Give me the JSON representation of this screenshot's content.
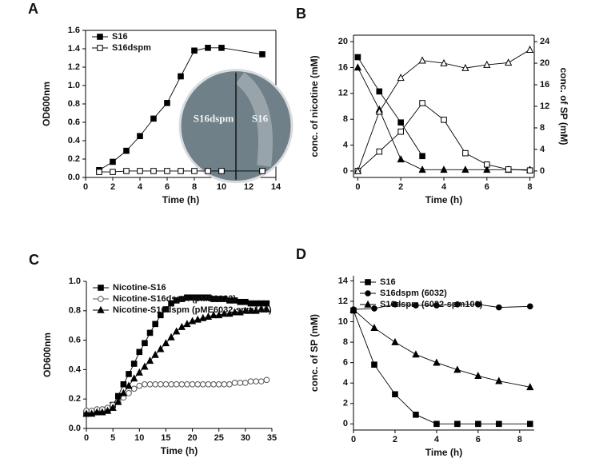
{
  "chart_data": [
    {
      "type": "line",
      "panel": "A",
      "xlabel": "Time (h)",
      "ylabel": "OD600nm",
      "frame": true,
      "legend": "upper left",
      "xlim": [
        0,
        14
      ],
      "xticks": [
        0,
        2,
        4,
        6,
        8,
        10,
        12,
        14
      ],
      "ylim": [
        0,
        1.6
      ],
      "yticks": [
        {
          "value": 0,
          "label": "0.0"
        },
        0.2,
        0.4,
        0.6,
        0.8,
        {
          "value": 1,
          "label": "1.0"
        },
        1.2,
        1.4,
        1.6
      ],
      "x": [
        1,
        2,
        3,
        4,
        5,
        6,
        7,
        8,
        9,
        10,
        13
      ],
      "series": [
        {
          "name": "S16",
          "color": "#000000",
          "marker": "square",
          "filled": true,
          "values": [
            0.08,
            0.17,
            0.29,
            0.45,
            0.64,
            0.81,
            1.1,
            1.38,
            1.41,
            1.41,
            1.34
          ]
        },
        {
          "name": "S16dspm",
          "color": "#000000",
          "marker": "square",
          "filled": false,
          "values": [
            0.06,
            0.06,
            0.07,
            0.07,
            0.07,
            0.07,
            0.07,
            0.07,
            0.07,
            0.07,
            0.07
          ]
        }
      ],
      "inset_labels": [
        "S16dspm",
        "S16"
      ]
    },
    {
      "type": "line",
      "panel": "B",
      "xlabel": "Time (h)",
      "ylabel": "conc. of nicotine (mM)",
      "y2label": "conc. of SP (mM)",
      "frame": true,
      "xlim": [
        -0.2,
        8.2
      ],
      "xticks": [
        0,
        2,
        4,
        6,
        8
      ],
      "ylim": [
        -1,
        21
      ],
      "yticks": [
        0,
        4,
        8,
        12,
        16,
        20
      ],
      "y2lim": [
        -1.2,
        25.2
      ],
      "y2ticks": [
        0,
        4,
        8,
        12,
        16,
        20,
        24
      ],
      "x": [
        0,
        1,
        2,
        3,
        4,
        5,
        6,
        7,
        8
      ],
      "series": [
        {
          "color": "#000000",
          "marker": "square",
          "filled": true,
          "values": [
            17.6,
            12.3,
            7.5,
            2.3,
            null,
            null,
            null,
            null,
            null
          ]
        },
        {
          "color": "#000000",
          "marker": "triangle",
          "filled": true,
          "values": [
            16.0,
            9.5,
            1.8,
            0.2,
            0.2,
            0.2,
            0.2,
            0.2,
            0.2
          ]
        },
        {
          "color": "#000000",
          "marker": "square",
          "filled": false,
          "axis": "y2",
          "values": [
            0,
            3.6,
            7.3,
            12.6,
            9.5,
            3.3,
            1.2,
            0.3,
            0.1
          ]
        },
        {
          "color": "#000000",
          "marker": "triangle",
          "filled": false,
          "axis": "y2",
          "values": [
            0,
            11.0,
            17.3,
            20.5,
            20.0,
            19.1,
            19.7,
            20.1,
            22.5
          ]
        }
      ]
    },
    {
      "type": "line",
      "panel": "C",
      "xlabel": "Time (h)",
      "ylabel": "OD600nm",
      "frame": false,
      "legend": "upper left",
      "xlim": [
        0,
        35
      ],
      "xticks": [
        0,
        5,
        10,
        15,
        20,
        25,
        30,
        35
      ],
      "ylim": [
        0,
        1.0
      ],
      "yticks": [
        {
          "value": 0,
          "label": "0.0"
        },
        0.2,
        0.4,
        0.6,
        0.8,
        {
          "value": 1,
          "label": "1.0"
        }
      ],
      "x": [
        0,
        1,
        2,
        3,
        4,
        5,
        6,
        7,
        8,
        9,
        10,
        11,
        12,
        13,
        14,
        15,
        16,
        17,
        18,
        19,
        20,
        21,
        22,
        23,
        24,
        25,
        26,
        27,
        28,
        29,
        30,
        31,
        32,
        33,
        34
      ],
      "series": [
        {
          "name": "Nicotine-S16",
          "color": "#000000",
          "marker": "square",
          "filled": true,
          "values": [
            0.1,
            0.11,
            0.11,
            0.12,
            0.13,
            0.16,
            0.22,
            0.3,
            0.37,
            0.44,
            0.52,
            0.58,
            0.65,
            0.71,
            0.77,
            0.81,
            0.85,
            0.87,
            0.88,
            0.89,
            0.89,
            0.89,
            0.89,
            0.89,
            0.88,
            0.88,
            0.88,
            0.87,
            0.87,
            0.86,
            0.86,
            0.85,
            0.85,
            0.85,
            0.85
          ]
        },
        {
          "name": "Nicotine-S16dspm (pME6032)",
          "color": "#555555",
          "marker": "circle",
          "filled": false,
          "values": [
            0.12,
            0.12,
            0.13,
            0.13,
            0.14,
            0.16,
            0.18,
            0.21,
            0.24,
            0.27,
            0.29,
            0.3,
            0.3,
            0.3,
            0.3,
            0.3,
            0.3,
            0.3,
            0.3,
            0.3,
            0.3,
            0.3,
            0.3,
            0.3,
            0.3,
            0.3,
            0.3,
            0.3,
            0.31,
            0.31,
            0.31,
            0.32,
            0.32,
            0.32,
            0.33
          ]
        },
        {
          "name": "Nicotine-S16dspm (pME6032-spm100)",
          "color": "#000000",
          "marker": "triangle",
          "filled": true,
          "values": [
            0.1,
            0.1,
            0.11,
            0.11,
            0.12,
            0.14,
            0.18,
            0.24,
            0.29,
            0.34,
            0.38,
            0.42,
            0.46,
            0.5,
            0.54,
            0.58,
            0.62,
            0.66,
            0.69,
            0.71,
            0.73,
            0.74,
            0.75,
            0.76,
            0.77,
            0.77,
            0.78,
            0.78,
            0.79,
            0.79,
            0.8,
            0.8,
            0.8,
            0.81,
            0.81
          ]
        }
      ]
    },
    {
      "type": "line",
      "panel": "D",
      "xlabel": "Time (h)",
      "ylabel": "conc. of SP (mM)",
      "frame": false,
      "legend": "upper left",
      "xlim": [
        0,
        8.7
      ],
      "xticks": [
        0,
        2,
        4,
        6,
        8
      ],
      "ylim": [
        -0.6,
        14.5
      ],
      "yticks": [
        0,
        2,
        4,
        6,
        8,
        10,
        12,
        14
      ],
      "x": [
        0,
        1,
        2,
        3,
        4,
        5,
        6,
        7,
        8.5
      ],
      "series": [
        {
          "name": "S16",
          "color": "#000000",
          "marker": "square",
          "filled": true,
          "values": [
            11.1,
            5.8,
            2.9,
            0.9,
            0,
            0,
            0,
            0,
            0
          ]
        },
        {
          "name": "S16dspm (6032)",
          "color": "#000000",
          "marker": "circle",
          "filled": true,
          "values": [
            11.2,
            11.3,
            11.7,
            11.6,
            11.6,
            11.7,
            11.7,
            11.4,
            11.5
          ]
        },
        {
          "name": "S16dspm (6032-spm100)",
          "color": "#000000",
          "marker": "triangle",
          "filled": true,
          "values": [
            11.2,
            9.4,
            8.0,
            6.8,
            6.0,
            5.3,
            4.7,
            4.2,
            3.6
          ]
        }
      ]
    }
  ]
}
